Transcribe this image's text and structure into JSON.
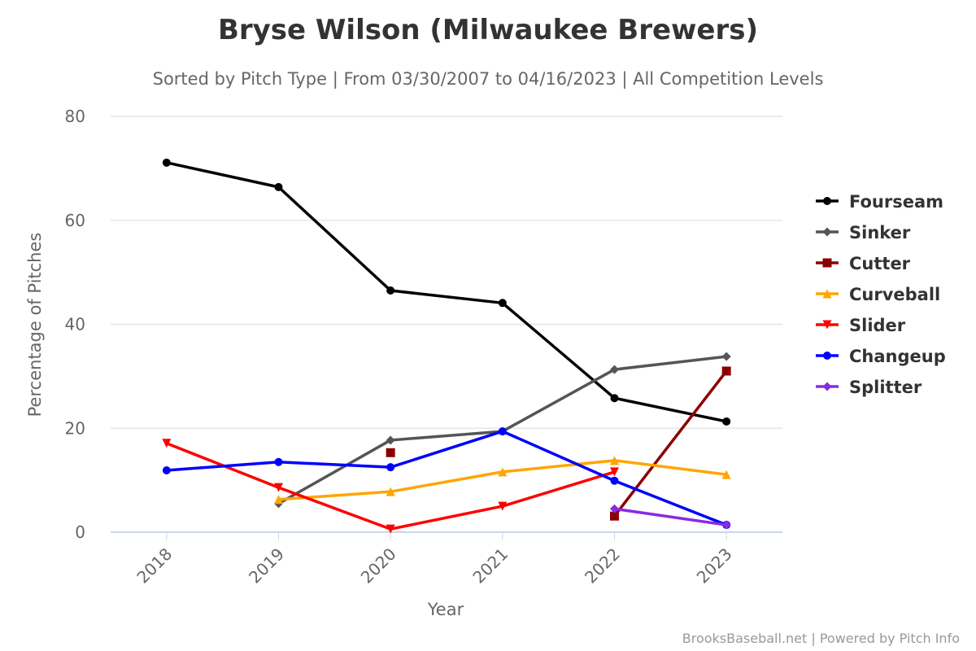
{
  "chart_data": {
    "type": "line",
    "title": "Bryse Wilson (Milwaukee Brewers)",
    "subtitle": "Sorted by Pitch Type | From 03/30/2007 to 04/16/2023 | All Competition Levels",
    "xlabel": "Year",
    "ylabel": "Percentage of Pitches",
    "categories": [
      "2018",
      "2019",
      "2020",
      "2021",
      "2022",
      "2023"
    ],
    "ylim": [
      0,
      80
    ],
    "yticks": [
      "0",
      "20",
      "40",
      "60",
      "80"
    ],
    "grid": true,
    "legend_position": "right",
    "series": [
      {
        "name": "Fourseam",
        "color": "#000000",
        "marker": "circle",
        "values": [
          71.1,
          66.4,
          46.5,
          44.1,
          25.8,
          21.3
        ]
      },
      {
        "name": "Sinker",
        "color": "#555555",
        "marker": "diamond",
        "values": [
          null,
          5.5,
          17.7,
          19.4,
          31.3,
          33.8
        ]
      },
      {
        "name": "Cutter",
        "color": "#8b0000",
        "marker": "square",
        "values": [
          null,
          null,
          15.3,
          null,
          3.1,
          31.0
        ]
      },
      {
        "name": "Curveball",
        "color": "#ffa500",
        "marker": "triangle",
        "values": [
          null,
          6.3,
          7.8,
          11.6,
          13.8,
          11.1
        ]
      },
      {
        "name": "Slider",
        "color": "#ff0000",
        "marker": "triangle-down",
        "values": [
          17.1,
          8.6,
          0.6,
          5.0,
          11.6,
          null
        ]
      },
      {
        "name": "Changeup",
        "color": "#0000ff",
        "marker": "circle",
        "values": [
          11.9,
          13.5,
          12.5,
          19.4,
          9.9,
          1.4
        ]
      },
      {
        "name": "Splitter",
        "color": "#8a2be2",
        "marker": "diamond",
        "values": [
          null,
          null,
          null,
          null,
          4.5,
          1.4
        ]
      }
    ],
    "credit": "BrooksBaseball.net | Powered by Pitch Info"
  }
}
